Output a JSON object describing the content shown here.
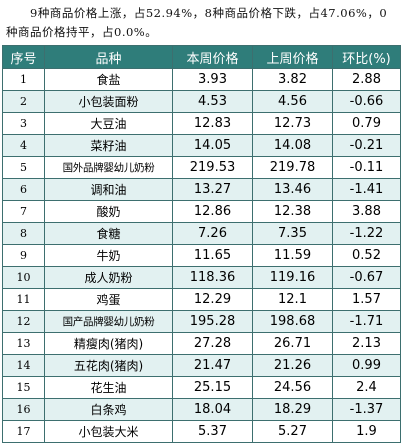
{
  "intro": "9种商品价格上涨，占52.94%，8种商品价格下跌，占47.06%，0种商品价格持平，占0.0%。",
  "columns": [
    "序号",
    "品种",
    "本周价格",
    "上周价格",
    "环比(%)"
  ],
  "rows": [
    {
      "idx": "1",
      "name": "食盐",
      "this_week": "3.93",
      "last_week": "3.82",
      "change": "2.88"
    },
    {
      "idx": "2",
      "name": "小包装面粉",
      "this_week": "4.53",
      "last_week": "4.56",
      "change": "-0.66"
    },
    {
      "idx": "3",
      "name": "大豆油",
      "this_week": "12.83",
      "last_week": "12.73",
      "change": "0.79"
    },
    {
      "idx": "4",
      "name": "菜籽油",
      "this_week": "14.05",
      "last_week": "14.08",
      "change": "-0.21"
    },
    {
      "idx": "5",
      "name": "国外品牌婴幼儿奶粉",
      "this_week": "219.53",
      "last_week": "219.78",
      "change": "-0.11"
    },
    {
      "idx": "6",
      "name": "调和油",
      "this_week": "13.27",
      "last_week": "13.46",
      "change": "-1.41"
    },
    {
      "idx": "7",
      "name": "酸奶",
      "this_week": "12.86",
      "last_week": "12.38",
      "change": "3.88"
    },
    {
      "idx": "8",
      "name": "食糖",
      "this_week": "7.26",
      "last_week": "7.35",
      "change": "-1.22"
    },
    {
      "idx": "9",
      "name": "牛奶",
      "this_week": "11.65",
      "last_week": "11.59",
      "change": "0.52"
    },
    {
      "idx": "10",
      "name": "成人奶粉",
      "this_week": "118.36",
      "last_week": "119.16",
      "change": "-0.67"
    },
    {
      "idx": "11",
      "name": "鸡蛋",
      "this_week": "12.29",
      "last_week": "12.1",
      "change": "1.57"
    },
    {
      "idx": "12",
      "name": "国产品牌婴幼儿奶粉",
      "this_week": "195.28",
      "last_week": "198.68",
      "change": "-1.71"
    },
    {
      "idx": "13",
      "name": "精瘦肉(猪肉)",
      "this_week": "27.28",
      "last_week": "26.71",
      "change": "2.13"
    },
    {
      "idx": "14",
      "name": "五花肉(猪肉)",
      "this_week": "21.47",
      "last_week": "21.26",
      "change": "0.99"
    },
    {
      "idx": "15",
      "name": "花生油",
      "this_week": "25.15",
      "last_week": "24.56",
      "change": "2.4"
    },
    {
      "idx": "16",
      "name": "白条鸡",
      "this_week": "18.04",
      "last_week": "18.29",
      "change": "-1.37"
    },
    {
      "idx": "17",
      "name": "小包装大米",
      "this_week": "5.37",
      "last_week": "5.27",
      "change": "1.9"
    }
  ]
}
